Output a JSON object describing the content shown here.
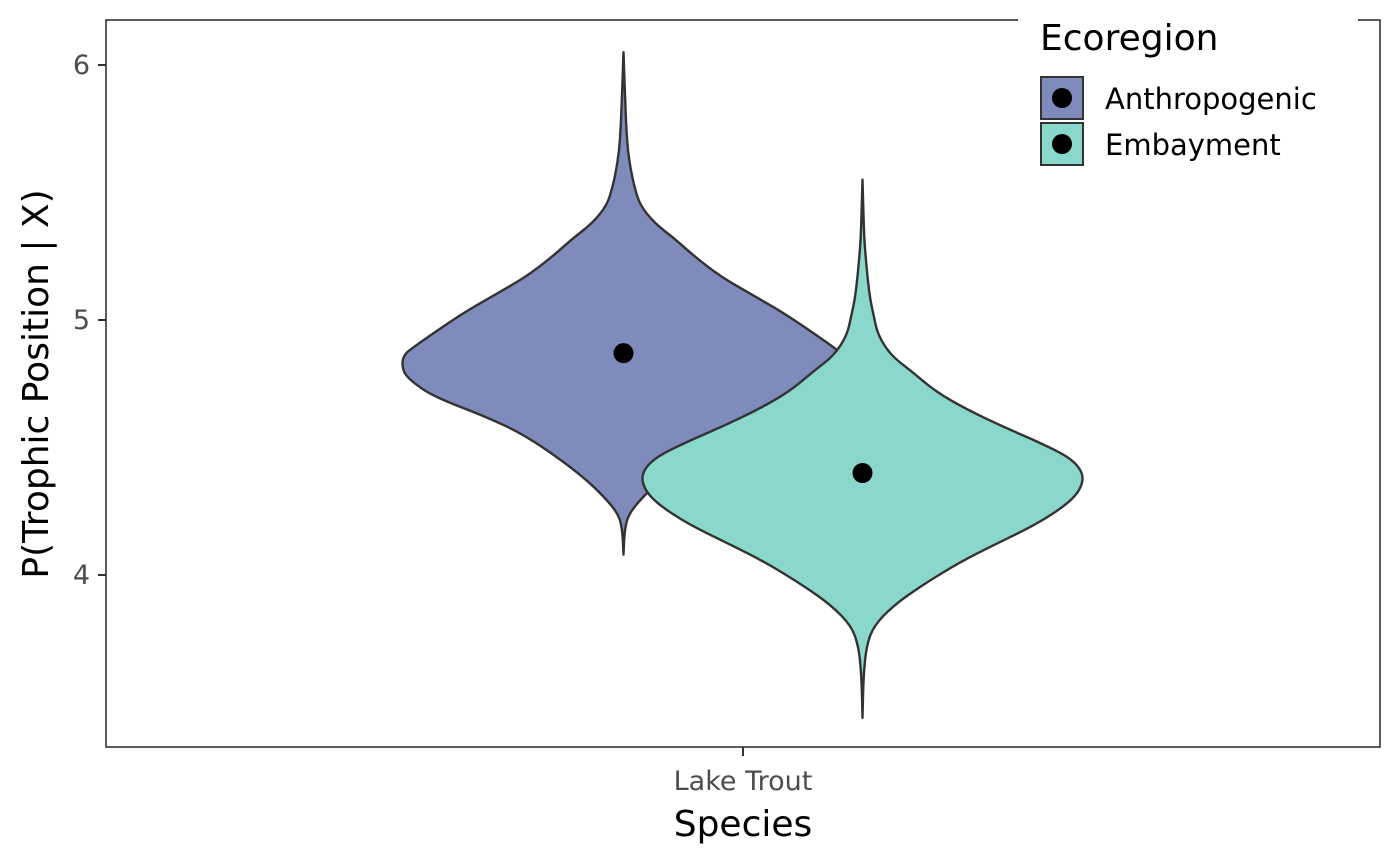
{
  "chart_data": {
    "type": "violin",
    "title": "",
    "xlabel": "Species",
    "ylabel": "P(Trophic Position | X)",
    "categories": [
      "Lake Trout"
    ],
    "ylim": [
      3.28,
      6.18
    ],
    "y_ticks": [
      4,
      5,
      6
    ],
    "grid": false,
    "legend": {
      "title": "Ecoregion",
      "placement": "top-right",
      "entries": [
        "Anthropogenic",
        "Embayment"
      ]
    },
    "series": [
      {
        "name": "Anthropogenic",
        "category": "Lake Trout",
        "color": "#7f8bba",
        "point_value": 4.87,
        "y_min": 4.08,
        "y_max": 6.05,
        "density": [
          [
            4.08,
            0.0
          ],
          [
            4.12,
            0.002
          ],
          [
            4.18,
            0.006
          ],
          [
            4.23,
            0.02
          ],
          [
            4.28,
            0.06
          ],
          [
            4.36,
            0.15
          ],
          [
            4.45,
            0.28
          ],
          [
            4.55,
            0.45
          ],
          [
            4.62,
            0.62
          ],
          [
            4.7,
            0.86
          ],
          [
            4.76,
            0.96
          ],
          [
            4.8,
            1.0
          ],
          [
            4.86,
            1.0
          ],
          [
            4.9,
            0.94
          ],
          [
            4.96,
            0.84
          ],
          [
            5.03,
            0.72
          ],
          [
            5.1,
            0.58
          ],
          [
            5.17,
            0.44
          ],
          [
            5.25,
            0.32
          ],
          [
            5.32,
            0.23
          ],
          [
            5.38,
            0.14
          ],
          [
            5.45,
            0.075
          ],
          [
            5.52,
            0.05
          ],
          [
            5.58,
            0.035
          ],
          [
            5.66,
            0.02
          ],
          [
            5.75,
            0.013
          ],
          [
            5.85,
            0.008
          ],
          [
            5.95,
            0.004
          ],
          [
            6.05,
            0.0
          ]
        ]
      },
      {
        "name": "Embayment",
        "category": "Lake Trout",
        "color": "#8ad7cb",
        "point_value": 4.4,
        "y_min": 3.44,
        "y_max": 5.55,
        "density": [
          [
            3.44,
            0.0
          ],
          [
            3.52,
            0.002
          ],
          [
            3.62,
            0.006
          ],
          [
            3.72,
            0.018
          ],
          [
            3.8,
            0.05
          ],
          [
            3.88,
            0.14
          ],
          [
            3.96,
            0.27
          ],
          [
            4.05,
            0.44
          ],
          [
            4.12,
            0.6
          ],
          [
            4.2,
            0.79
          ],
          [
            4.28,
            0.93
          ],
          [
            4.34,
            0.99
          ],
          [
            4.4,
            1.0
          ],
          [
            4.46,
            0.94
          ],
          [
            4.52,
            0.8
          ],
          [
            4.58,
            0.64
          ],
          [
            4.65,
            0.47
          ],
          [
            4.72,
            0.33
          ],
          [
            4.8,
            0.22
          ],
          [
            4.86,
            0.13
          ],
          [
            4.94,
            0.07
          ],
          [
            5.02,
            0.05
          ],
          [
            5.08,
            0.035
          ],
          [
            5.15,
            0.025
          ],
          [
            5.24,
            0.015
          ],
          [
            5.32,
            0.008
          ],
          [
            5.42,
            0.004
          ],
          [
            5.55,
            0.0
          ]
        ]
      }
    ]
  }
}
